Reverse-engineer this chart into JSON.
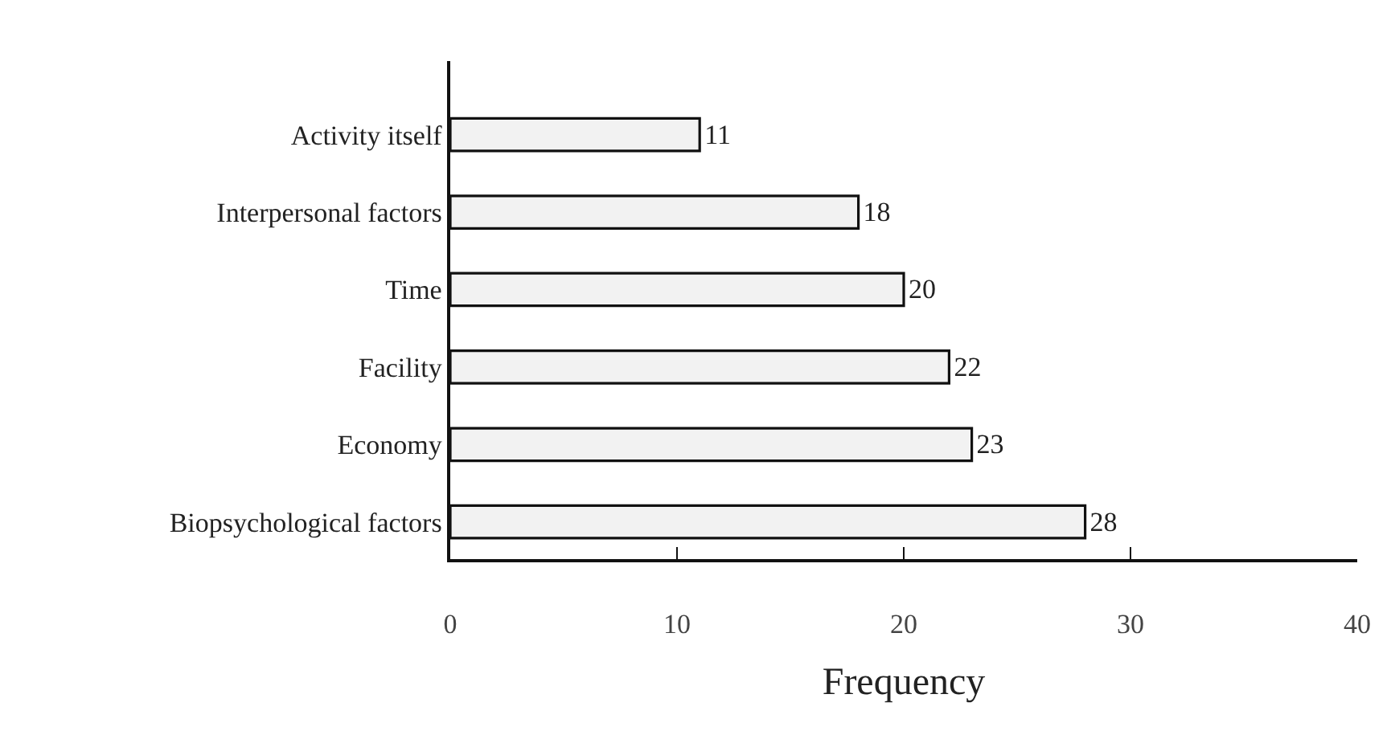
{
  "chart_data": {
    "type": "bar",
    "orientation": "horizontal",
    "categories": [
      "Activity itself",
      "Interpersonal factors",
      "Time",
      "Facility",
      "Economy",
      "Biopsychological factors"
    ],
    "values": [
      11,
      18,
      20,
      22,
      23,
      28
    ],
    "color": "#f2f2f2",
    "xlabel": "Frequency",
    "xlim": [
      0,
      40
    ],
    "xticks": [
      0,
      10,
      20,
      30,
      40
    ],
    "data_labels": true,
    "legend": false
  }
}
